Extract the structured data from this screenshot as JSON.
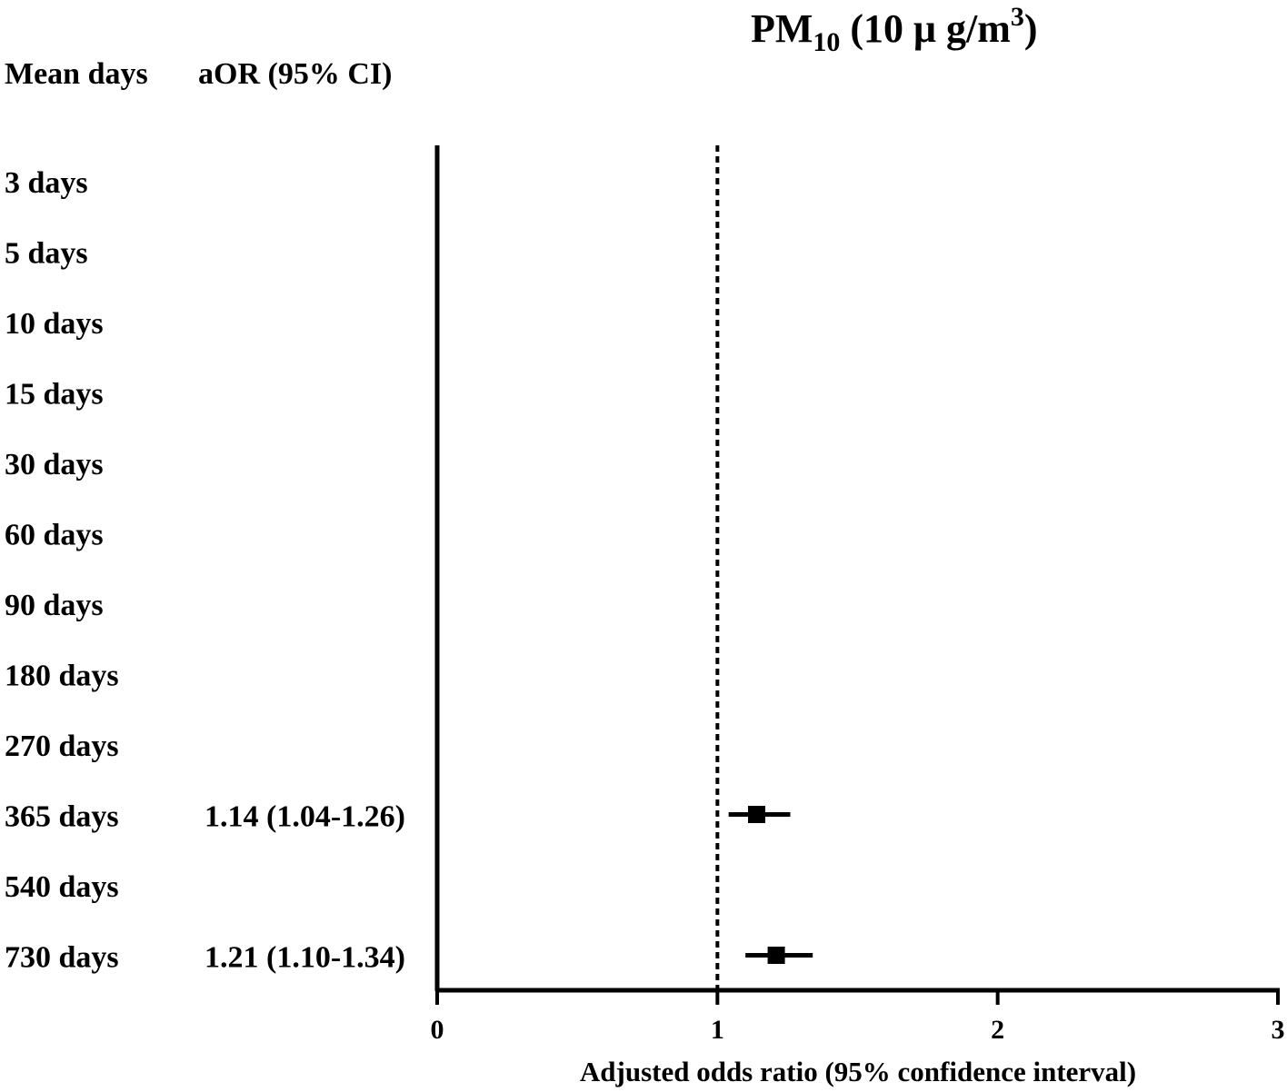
{
  "chart_data": {
    "type": "forest",
    "title": {
      "main": "PM",
      "subscript": "10",
      "unit_open": " (10 μ g/m",
      "superscript": "3",
      "unit_close": ")"
    },
    "column_headers": {
      "label": "Mean days",
      "estimate": "aOR (95% CI)"
    },
    "xlabel": "Adjusted odds ratio (95% confidence interval)",
    "xlim": [
      0,
      3
    ],
    "xticks": [
      "0",
      "1",
      "2",
      "3"
    ],
    "reference_line": 1,
    "rows": [
      {
        "label": "3 days",
        "estimate_text": null,
        "or": null,
        "lower": null,
        "upper": null
      },
      {
        "label": "5 days",
        "estimate_text": null,
        "or": null,
        "lower": null,
        "upper": null
      },
      {
        "label": "10 days",
        "estimate_text": null,
        "or": null,
        "lower": null,
        "upper": null
      },
      {
        "label": "15 days",
        "estimate_text": null,
        "or": null,
        "lower": null,
        "upper": null
      },
      {
        "label": "30 days",
        "estimate_text": null,
        "or": null,
        "lower": null,
        "upper": null
      },
      {
        "label": "60 days",
        "estimate_text": null,
        "or": null,
        "lower": null,
        "upper": null
      },
      {
        "label": "90 days",
        "estimate_text": null,
        "or": null,
        "lower": null,
        "upper": null
      },
      {
        "label": "180 days",
        "estimate_text": null,
        "or": null,
        "lower": null,
        "upper": null
      },
      {
        "label": "270 days",
        "estimate_text": null,
        "or": null,
        "lower": null,
        "upper": null
      },
      {
        "label": "365 days",
        "estimate_text": "1.14 (1.04-1.26)",
        "or": 1.14,
        "lower": 1.04,
        "upper": 1.26
      },
      {
        "label": "540 days",
        "estimate_text": null,
        "or": null,
        "lower": null,
        "upper": null
      },
      {
        "label": "730 days",
        "estimate_text": "1.21 (1.10-1.34)",
        "or": 1.21,
        "lower": 1.1,
        "upper": 1.34
      }
    ],
    "colors": {
      "ink": "#000000",
      "background": "#ffffff"
    }
  }
}
